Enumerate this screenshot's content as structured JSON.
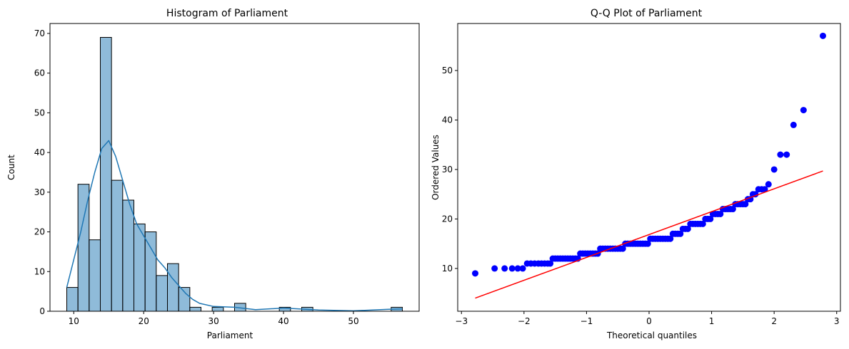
{
  "chart_data": [
    {
      "type": "bar",
      "subtype": "histogram-with-kde",
      "title": "Histogram of Parliament",
      "xlabel": "Parliament",
      "ylabel": "Count",
      "xlim": [
        6.6,
        59.4
      ],
      "ylim": [
        0,
        72.5
      ],
      "xticks": [
        10,
        20,
        30,
        40,
        50
      ],
      "yticks": [
        0,
        10,
        20,
        30,
        40,
        50,
        60,
        70
      ],
      "bin_start": 9,
      "bin_width": 1.6,
      "counts": [
        6,
        32,
        18,
        69,
        33,
        28,
        22,
        20,
        9,
        12,
        6,
        1,
        0,
        1,
        0,
        2,
        0,
        0,
        0,
        1,
        0,
        1,
        0,
        0,
        0,
        0,
        0,
        0,
        0,
        1
      ],
      "bar_color": "#1f77b4",
      "kde": {
        "color": "#1f77b4",
        "x": [
          9,
          11,
          12,
          13,
          14,
          15,
          16,
          17,
          18,
          19,
          20,
          21,
          22,
          23,
          24,
          25,
          26,
          27,
          28,
          30,
          33,
          36,
          40,
          45,
          50,
          55,
          57
        ],
        "y": [
          6,
          20,
          28,
          35,
          41,
          43,
          39,
          33,
          27,
          22,
          19,
          16,
          13,
          11,
          8.5,
          6.5,
          4.5,
          3,
          2,
          1.2,
          1,
          0.4,
          0.8,
          0.3,
          0.1,
          0.5,
          0.6
        ]
      }
    },
    {
      "type": "scatter",
      "subtype": "qq-plot",
      "title": "Q-Q Plot of Parliament",
      "xlabel": "Theoretical quantiles",
      "ylabel": "Ordered Values",
      "xlim": [
        -3.06,
        3.06
      ],
      "ylim": [
        1.35,
        59.5
      ],
      "xticks": [
        -3,
        -2,
        -1,
        0,
        1,
        2,
        3
      ],
      "yticks": [
        10,
        20,
        30,
        40,
        50
      ],
      "point_color": "#0000ff",
      "line_color": "#ff0000",
      "fit_line": {
        "x": [
          -2.78,
          2.78
        ],
        "y": [
          4.0,
          29.7
        ]
      },
      "points": [
        [
          -2.78,
          9
        ],
        [
          -2.47,
          10
        ],
        [
          -2.31,
          10
        ],
        [
          -2.19,
          10
        ],
        [
          -2.1,
          10
        ],
        [
          -2.02,
          10
        ],
        [
          -1.95,
          11
        ],
        [
          -1.89,
          11
        ],
        [
          -1.83,
          11
        ],
        [
          -1.77,
          11
        ],
        [
          -1.72,
          11
        ],
        [
          -1.67,
          11
        ],
        [
          -1.62,
          11
        ],
        [
          -1.58,
          11
        ],
        [
          -1.54,
          12
        ],
        [
          -1.5,
          12
        ],
        [
          -1.46,
          12
        ],
        [
          -1.42,
          12
        ],
        [
          -1.38,
          12
        ],
        [
          -1.34,
          12
        ],
        [
          -1.3,
          12
        ],
        [
          -1.26,
          12
        ],
        [
          -1.22,
          12
        ],
        [
          -1.18,
          12
        ],
        [
          -1.14,
          12
        ],
        [
          -1.1,
          13
        ],
        [
          -1.06,
          13
        ],
        [
          -1.02,
          13
        ],
        [
          -0.98,
          13
        ],
        [
          -0.94,
          13
        ],
        [
          -0.9,
          13
        ],
        [
          -0.86,
          13
        ],
        [
          -0.82,
          13
        ],
        [
          -0.78,
          14
        ],
        [
          -0.74,
          14
        ],
        [
          -0.7,
          14
        ],
        [
          -0.66,
          14
        ],
        [
          -0.62,
          14
        ],
        [
          -0.58,
          14
        ],
        [
          -0.54,
          14
        ],
        [
          -0.5,
          14
        ],
        [
          -0.46,
          14
        ],
        [
          -0.42,
          14
        ],
        [
          -0.38,
          15
        ],
        [
          -0.34,
          15
        ],
        [
          -0.3,
          15
        ],
        [
          -0.26,
          15
        ],
        [
          -0.22,
          15
        ],
        [
          -0.18,
          15
        ],
        [
          -0.14,
          15
        ],
        [
          -0.1,
          15
        ],
        [
          -0.06,
          15
        ],
        [
          -0.02,
          15
        ],
        [
          0.02,
          16
        ],
        [
          0.06,
          16
        ],
        [
          0.1,
          16
        ],
        [
          0.14,
          16
        ],
        [
          0.18,
          16
        ],
        [
          0.22,
          16
        ],
        [
          0.26,
          16
        ],
        [
          0.3,
          16
        ],
        [
          0.34,
          16
        ],
        [
          0.38,
          17
        ],
        [
          0.42,
          17
        ],
        [
          0.46,
          17
        ],
        [
          0.5,
          17
        ],
        [
          0.54,
          18
        ],
        [
          0.58,
          18
        ],
        [
          0.62,
          18
        ],
        [
          0.66,
          19
        ],
        [
          0.7,
          19
        ],
        [
          0.74,
          19
        ],
        [
          0.78,
          19
        ],
        [
          0.82,
          19
        ],
        [
          0.86,
          19
        ],
        [
          0.9,
          20
        ],
        [
          0.94,
          20
        ],
        [
          0.98,
          20
        ],
        [
          1.02,
          21
        ],
        [
          1.06,
          21
        ],
        [
          1.1,
          21
        ],
        [
          1.14,
          21
        ],
        [
          1.18,
          22
        ],
        [
          1.22,
          22
        ],
        [
          1.26,
          22
        ],
        [
          1.3,
          22
        ],
        [
          1.34,
          22
        ],
        [
          1.38,
          23
        ],
        [
          1.42,
          23
        ],
        [
          1.46,
          23
        ],
        [
          1.5,
          23
        ],
        [
          1.54,
          23
        ],
        [
          1.58,
          24
        ],
        [
          1.62,
          24
        ],
        [
          1.66,
          25
        ],
        [
          1.7,
          25
        ],
        [
          1.75,
          26
        ],
        [
          1.8,
          26
        ],
        [
          1.85,
          26
        ],
        [
          1.91,
          27
        ],
        [
          2.0,
          30
        ],
        [
          2.1,
          33
        ],
        [
          2.2,
          33
        ],
        [
          2.31,
          39
        ],
        [
          2.47,
          42
        ],
        [
          2.78,
          57
        ]
      ]
    }
  ]
}
